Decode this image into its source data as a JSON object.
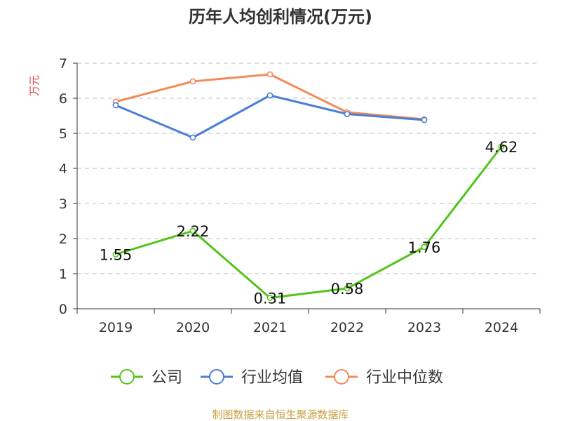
{
  "chart_data": {
    "type": "line",
    "title": "历年人均创利情况(万元)",
    "ylabel": "万元",
    "xlabel": "",
    "categories": [
      "2019",
      "2020",
      "2021",
      "2022",
      "2023",
      "2024"
    ],
    "ylim": [
      0,
      7
    ],
    "yticks": [
      0,
      1,
      2,
      3,
      4,
      5,
      6,
      7
    ],
    "grid": true,
    "legend_position": "bottom",
    "series": [
      {
        "name": "公司",
        "color": "#52c41a",
        "values": [
          1.55,
          2.22,
          0.31,
          0.58,
          1.76,
          4.62
        ],
        "labels": [
          "1.55",
          "2.22",
          "0.31",
          "0.58",
          "1.76",
          "4.62"
        ]
      },
      {
        "name": "行业均值",
        "color": "#4a7fd6",
        "values": [
          5.8,
          4.88,
          6.08,
          5.55,
          5.38,
          null
        ]
      },
      {
        "name": "行业中位数",
        "color": "#f28b59",
        "values": [
          5.9,
          6.48,
          6.68,
          5.6,
          5.4,
          null
        ]
      }
    ],
    "source": "制图数据来自恒生聚源数据库"
  },
  "colors": {
    "title": "#333333",
    "axis": "#333333",
    "grid": "#cccccc",
    "ylabel": "#e04040",
    "source": "#c8a040"
  }
}
